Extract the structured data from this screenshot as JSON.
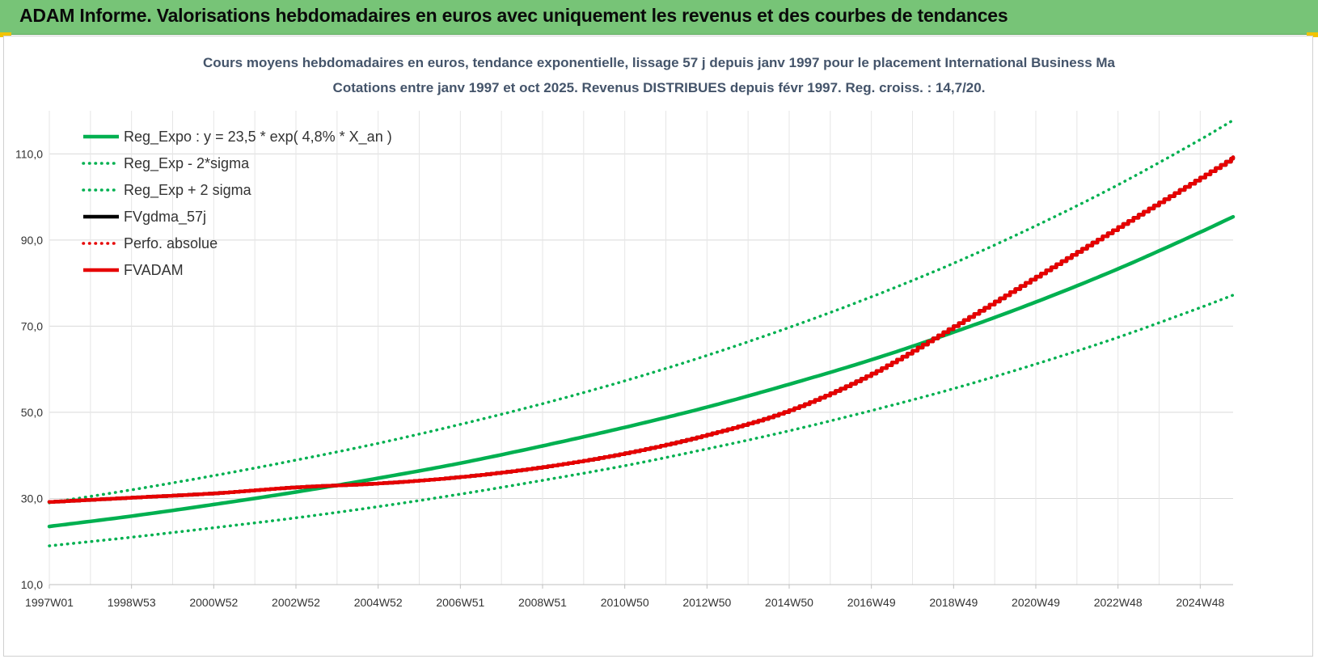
{
  "header": {
    "title": "ADAM Informe. Valorisations hebdomadaires en euros avec uniquement les revenus et des courbes de tendances"
  },
  "colors": {
    "header_bg": "#77c477",
    "green_series": "#00b050",
    "red_series": "#e60000",
    "black_series": "#000000",
    "title_text": "#44546a",
    "grid": "#d9d9d9"
  },
  "chart_data": {
    "type": "line",
    "title_lines": [
      "Cours moyens hebdomadaires en euros, tendance exponentielle, lissage 57 j depuis janv 1997 pour le placement International Business Ma",
      "Cotations entre janv 1997 et oct 2025. Revenus DISTRIBUES depuis févr 1997. Reg. croiss. : 14,7/20."
    ],
    "xlabel": "",
    "ylabel": "",
    "ylim": [
      10,
      120
    ],
    "yticks": [
      "10,0",
      "30,0",
      "50,0",
      "70,0",
      "90,0",
      "110,0"
    ],
    "ytick_values": [
      10,
      30,
      50,
      70,
      90,
      110
    ],
    "xlim": [
      1997.0,
      2025.8
    ],
    "xticks": [
      "1997W01",
      "1998W53",
      "2000W52",
      "2002W52",
      "2004W52",
      "2006W51",
      "2008W51",
      "2010W50",
      "2012W50",
      "2014W50",
      "2016W49",
      "2018W49",
      "2020W49",
      "2022W48",
      "2024W48"
    ],
    "xtick_values": [
      1997.0,
      1999.0,
      2001.0,
      2003.0,
      2005.0,
      2007.0,
      2009.0,
      2011.0,
      2013.0,
      2015.0,
      2017.0,
      2019.0,
      2021.0,
      2023.0,
      2025.0
    ],
    "grid": "on",
    "legend_placement": "top-left",
    "series": [
      {
        "name": "Reg_Expo : y = 23,5 * exp( 4,8% *  X_an )",
        "style": "solid-thick",
        "color": "#00b050",
        "x": [
          1997.0,
          1999.0,
          2001.0,
          2003.0,
          2005.0,
          2007.0,
          2009.0,
          2011.0,
          2013.0,
          2015.0,
          2017.0,
          2019.0,
          2021.0,
          2023.0,
          2025.0,
          2025.8
        ],
        "y": [
          23.5,
          25.9,
          28.6,
          31.5,
          34.7,
          38.2,
          42.2,
          46.5,
          51.2,
          56.5,
          62.2,
          68.6,
          75.6,
          83.3,
          91.8,
          95.4
        ]
      },
      {
        "name": "Reg_Exp - 2*sigma",
        "style": "dotted",
        "color": "#00b050",
        "x": [
          1997.0,
          1999.0,
          2001.0,
          2003.0,
          2005.0,
          2007.0,
          2009.0,
          2011.0,
          2013.0,
          2015.0,
          2017.0,
          2019.0,
          2021.0,
          2023.0,
          2025.0,
          2025.8
        ],
        "y": [
          19.0,
          21.0,
          23.2,
          25.5,
          28.1,
          31.0,
          34.2,
          37.6,
          41.5,
          45.7,
          50.4,
          55.5,
          61.2,
          67.4,
          74.3,
          77.2
        ]
      },
      {
        "name": "Reg_Exp + 2 sigma",
        "style": "dotted",
        "color": "#00b050",
        "x": [
          1997.0,
          1999.0,
          2001.0,
          2003.0,
          2005.0,
          2007.0,
          2009.0,
          2011.0,
          2013.0,
          2015.0,
          2017.0,
          2019.0,
          2021.0,
          2023.0,
          2025.0,
          2025.8
        ],
        "y": [
          29.0,
          32.0,
          35.3,
          38.9,
          42.8,
          47.2,
          52.0,
          57.3,
          63.2,
          69.7,
          76.8,
          84.6,
          93.3,
          102.8,
          113.3,
          117.8
        ]
      },
      {
        "name": "FVgdma_57j",
        "style": "solid-thick",
        "color": "#000000",
        "x": [
          1997.0,
          1999.0,
          2001.0,
          2003.0,
          2005.0,
          2007.0,
          2009.0,
          2011.0,
          2013.0,
          2015.0,
          2017.0,
          2019.0,
          2021.0,
          2023.0,
          2025.0,
          2025.8
        ],
        "y": [
          29.2,
          30.2,
          31.2,
          32.6,
          33.5,
          35.0,
          37.3,
          40.5,
          44.8,
          50.5,
          59.0,
          70.0,
          81.5,
          93.0,
          104.5,
          109.2
        ]
      },
      {
        "name": "Perfo. absolue",
        "style": "dotted",
        "color": "#e60000",
        "x": [
          1997.0,
          1999.0,
          2001.0,
          2003.0,
          2005.0,
          2007.0,
          2009.0,
          2011.0,
          2013.0,
          2015.0,
          2017.0,
          2019.0,
          2021.0,
          2023.0,
          2025.0,
          2025.8
        ],
        "y": [
          29.2,
          30.2,
          31.2,
          32.6,
          33.5,
          35.0,
          37.3,
          40.5,
          44.8,
          50.5,
          59.0,
          70.0,
          81.5,
          93.0,
          104.5,
          109.2
        ]
      },
      {
        "name": "FVADAM",
        "style": "solid-thick",
        "color": "#e60000",
        "x": [
          1997.0,
          1999.0,
          2001.0,
          2003.0,
          2005.0,
          2007.0,
          2009.0,
          2011.0,
          2013.0,
          2015.0,
          2017.0,
          2019.0,
          2021.0,
          2023.0,
          2025.0,
          2025.8
        ],
        "y": [
          29.2,
          30.2,
          31.2,
          32.6,
          33.5,
          35.0,
          37.3,
          40.5,
          44.8,
          50.5,
          59.0,
          70.0,
          81.5,
          93.0,
          104.5,
          109.2
        ]
      }
    ]
  }
}
